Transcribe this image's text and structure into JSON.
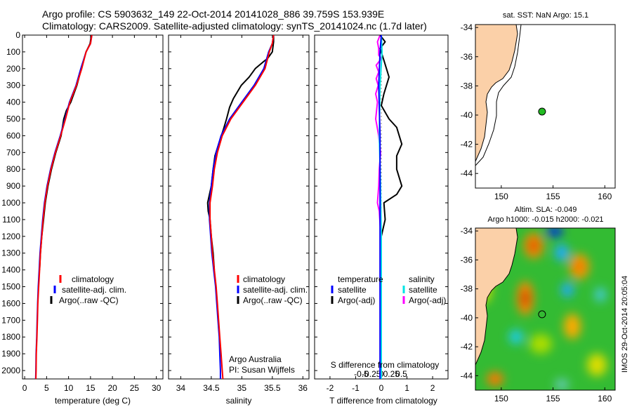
{
  "header": {
    "line1": "Argo profile: CS 5903632_149 22-Oct-2014 20141028_886 39.759S 153.939E",
    "line2": "Climatology: CARS2009. Satellite-adjusted climatology: synTS_20141024.nc (1.7d later)"
  },
  "colors": {
    "climatology": "#ff0000",
    "satellite": "#0000ff",
    "argo": "#000000",
    "sat_salinity": "#00e5e5",
    "argo_salinity": "#ff00ff",
    "land": "#fbd0a8",
    "float_marker": "#22bb22"
  },
  "chart_data": [
    {
      "id": "temperature",
      "type": "line",
      "xlabel": "temperature (deg C)",
      "ylabel": "",
      "xlim": [
        -0.5,
        31.5
      ],
      "ylim": [
        0,
        2050
      ],
      "xticks": [
        "0",
        "5",
        "10",
        "15",
        "20",
        "25",
        "30"
      ],
      "yticks": [
        "0",
        "100",
        "200",
        "300",
        "400",
        "500",
        "600",
        "700",
        "800",
        "900",
        "1000",
        "1100",
        "1200",
        "1300",
        "1400",
        "1500",
        "1600",
        "1700",
        "1800",
        "1900",
        "2000"
      ],
      "legend": [
        "climatology",
        "satellite-adj. clim.",
        "Argo(..raw -QC)"
      ],
      "series": [
        {
          "name": "climatology",
          "color": "#ff0000",
          "points": [
            [
              15.3,
              0
            ],
            [
              15.0,
              50
            ],
            [
              14.0,
              100
            ],
            [
              13.0,
              200
            ],
            [
              11.8,
              300
            ],
            [
              10.3,
              400
            ],
            [
              9.3,
              500
            ],
            [
              8.2,
              600
            ],
            [
              7.0,
              700
            ],
            [
              6.0,
              800
            ],
            [
              5.2,
              900
            ],
            [
              4.6,
              1000
            ],
            [
              4.2,
              1100
            ],
            [
              3.9,
              1200
            ],
            [
              3.6,
              1300
            ],
            [
              3.4,
              1400
            ],
            [
              3.2,
              1500
            ],
            [
              3.0,
              1600
            ],
            [
              2.9,
              1700
            ],
            [
              2.8,
              1800
            ],
            [
              2.65,
              1900
            ],
            [
              2.6,
              2000
            ],
            [
              2.55,
              2050
            ]
          ]
        },
        {
          "name": "satellite-adj. clim.",
          "color": "#0000ff",
          "points": [
            [
              15.3,
              0
            ],
            [
              15.0,
              50
            ],
            [
              14.0,
              100
            ],
            [
              12.8,
              200
            ],
            [
              11.7,
              300
            ],
            [
              10.2,
              400
            ],
            [
              9.2,
              500
            ],
            [
              8.1,
              600
            ],
            [
              6.9,
              700
            ],
            [
              5.9,
              800
            ],
            [
              5.1,
              900
            ],
            [
              4.5,
              1000
            ],
            [
              4.1,
              1100
            ],
            [
              3.8,
              1200
            ],
            [
              3.5,
              1300
            ],
            [
              3.3,
              1400
            ],
            [
              3.1,
              1500
            ],
            [
              2.95,
              1600
            ],
            [
              2.85,
              1700
            ],
            [
              2.75,
              1800
            ],
            [
              2.6,
              1900
            ],
            [
              2.55,
              2000
            ],
            [
              2.5,
              2050
            ]
          ]
        },
        {
          "name": "Argo(..raw -QC)",
          "color": "#000000",
          "points": [
            [
              15.2,
              0
            ],
            [
              14.9,
              50
            ],
            [
              14.0,
              100
            ],
            [
              12.9,
              200
            ],
            [
              11.9,
              300
            ],
            [
              10.5,
              400
            ],
            [
              9.5,
              450
            ],
            [
              8.9,
              500
            ],
            [
              8.3,
              600
            ],
            [
              7.1,
              700
            ],
            [
              6.1,
              800
            ],
            [
              5.3,
              900
            ],
            [
              4.7,
              1000
            ],
            [
              4.3,
              1100
            ],
            [
              3.9,
              1200
            ],
            [
              3.6,
              1300
            ],
            [
              3.4,
              1400
            ]
          ]
        }
      ]
    },
    {
      "id": "salinity",
      "type": "line",
      "xlabel": "salinity",
      "ylabel": "",
      "xlim": [
        33.8,
        36.1
      ],
      "ylim": [
        0,
        2050
      ],
      "xticks": [
        "34",
        "34.5",
        "35",
        "35.5",
        "36"
      ],
      "legend": [
        "climatology",
        "satellite-adj. clim.",
        "Argo(..raw -QC)"
      ],
      "annotations": [
        "Argo Australia",
        "PI: Susan Wijffels"
      ],
      "series": [
        {
          "name": "climatology",
          "color": "#ff0000",
          "points": [
            [
              35.52,
              0
            ],
            [
              35.5,
              50
            ],
            [
              35.45,
              100
            ],
            [
              35.38,
              200
            ],
            [
              35.22,
              300
            ],
            [
              35.02,
              400
            ],
            [
              34.82,
              500
            ],
            [
              34.68,
              600
            ],
            [
              34.6,
              700
            ],
            [
              34.55,
              800
            ],
            [
              34.52,
              900
            ],
            [
              34.48,
              1000
            ],
            [
              34.48,
              1100
            ],
            [
              34.5,
              1200
            ],
            [
              34.52,
              1300
            ],
            [
              34.55,
              1400
            ],
            [
              34.58,
              1500
            ],
            [
              34.6,
              1600
            ],
            [
              34.62,
              1700
            ],
            [
              34.64,
              1800
            ],
            [
              34.66,
              1900
            ],
            [
              34.68,
              2000
            ],
            [
              34.69,
              2050
            ]
          ]
        },
        {
          "name": "satellite-adj. clim.",
          "color": "#0000ff",
          "points": [
            [
              35.52,
              0
            ],
            [
              35.5,
              50
            ],
            [
              35.44,
              100
            ],
            [
              35.36,
              200
            ],
            [
              35.2,
              300
            ],
            [
              35.0,
              400
            ],
            [
              34.8,
              500
            ],
            [
              34.66,
              600
            ],
            [
              34.58,
              700
            ],
            [
              34.53,
              800
            ],
            [
              34.5,
              900
            ],
            [
              34.47,
              1000
            ],
            [
              34.47,
              1100
            ],
            [
              34.49,
              1200
            ],
            [
              34.51,
              1300
            ],
            [
              34.54,
              1400
            ],
            [
              34.57,
              1500
            ],
            [
              34.59,
              1600
            ],
            [
              34.61,
              1700
            ],
            [
              34.63,
              1800
            ],
            [
              34.64,
              1900
            ],
            [
              34.65,
              2000
            ],
            [
              34.65,
              2050
            ]
          ]
        },
        {
          "name": "Argo(..raw -QC)",
          "color": "#000000",
          "points": [
            [
              35.52,
              0
            ],
            [
              35.52,
              40
            ],
            [
              35.5,
              100
            ],
            [
              35.42,
              140
            ],
            [
              35.35,
              160
            ],
            [
              35.22,
              200
            ],
            [
              35.12,
              250
            ],
            [
              34.99,
              300
            ],
            [
              34.86,
              380
            ],
            [
              34.8,
              430
            ],
            [
              34.75,
              500
            ],
            [
              34.7,
              560
            ],
            [
              34.62,
              650
            ],
            [
              34.56,
              720
            ],
            [
              34.53,
              800
            ],
            [
              34.5,
              900
            ],
            [
              34.44,
              1000
            ],
            [
              34.45,
              1050
            ],
            [
              34.48,
              1100
            ],
            [
              34.5,
              1200
            ],
            [
              34.53,
              1300
            ],
            [
              34.55,
              1400
            ]
          ]
        }
      ]
    },
    {
      "id": "difference",
      "type": "line",
      "xlabel": "T difference from climatology",
      "xlabel_top": "S difference from climatology",
      "xlim": [
        -2.6,
        2.6
      ],
      "ylim": [
        0,
        2050
      ],
      "xticks_T": [
        "-2",
        "-1",
        "0",
        "1",
        "2"
      ],
      "xticks_S": [
        "-0.5",
        "-0.25",
        "0",
        "0.25",
        "0.5"
      ],
      "legend": {
        "temperature_heading": "temperature",
        "salinity_heading": "salinity",
        "temperature_items": [
          "satellite",
          "Argo(-adj)"
        ],
        "salinity_items": [
          "satellite",
          "Argo(-adj)"
        ]
      },
      "series": [
        {
          "name": "T satellite",
          "color": "#0000ff",
          "points": [
            [
              0.0,
              0
            ],
            [
              -0.05,
              100
            ],
            [
              -0.1,
              300
            ],
            [
              -0.05,
              600
            ],
            [
              -0.05,
              900
            ],
            [
              -0.05,
              1000
            ],
            [
              -0.05,
              1200
            ],
            [
              -0.05,
              1400
            ],
            [
              -0.05,
              2050
            ]
          ]
        },
        {
          "name": "T Argo(-adj)",
          "color": "#000000",
          "points": [
            [
              -0.05,
              0
            ],
            [
              0.15,
              40
            ],
            [
              -0.05,
              80
            ],
            [
              0.1,
              150
            ],
            [
              0.3,
              250
            ],
            [
              0.1,
              350
            ],
            [
              0.0,
              420
            ],
            [
              0.3,
              500
            ],
            [
              0.6,
              550
            ],
            [
              0.8,
              650
            ],
            [
              0.6,
              720
            ],
            [
              0.6,
              800
            ],
            [
              0.8,
              900
            ],
            [
              0.6,
              950
            ],
            [
              0.1,
              1000
            ],
            [
              0.15,
              1100
            ],
            [
              0.0,
              1200
            ],
            [
              0.0,
              1400
            ]
          ]
        },
        {
          "name": "S satellite",
          "color": "#00e5e5",
          "points": [
            [
              0.0,
              0
            ],
            [
              0.03,
              100
            ],
            [
              -0.05,
              300
            ],
            [
              -0.08,
              600
            ],
            [
              -0.03,
              900
            ],
            [
              0.0,
              1200
            ],
            [
              0.0,
              1400
            ],
            [
              0.0,
              2050
            ]
          ]
        },
        {
          "name": "S Argo(-adj)",
          "color": "#ff00ff",
          "points": [
            [
              -0.05,
              0
            ],
            [
              -0.15,
              40
            ],
            [
              -0.1,
              80
            ],
            [
              -0.1,
              120
            ],
            [
              0.0,
              140
            ],
            [
              -0.2,
              180
            ],
            [
              -0.1,
              220
            ],
            [
              -0.2,
              260
            ],
            [
              -0.12,
              300
            ],
            [
              -0.22,
              350
            ],
            [
              -0.15,
              400
            ],
            [
              -0.22,
              500
            ],
            [
              -0.1,
              600
            ],
            [
              -0.03,
              700
            ],
            [
              -0.08,
              800
            ],
            [
              -0.1,
              900
            ],
            [
              -0.15,
              1000
            ],
            [
              -0.08,
              1050
            ],
            [
              -0.02,
              1200
            ],
            [
              0.0,
              1400
            ]
          ]
        }
      ]
    },
    {
      "id": "sst-map",
      "type": "scatter",
      "title": "sat. SST: NaN  Argo: 15.1",
      "xlim": [
        147.5,
        161
      ],
      "ylim": [
        -45,
        -33.8
      ],
      "xticks": [
        "150",
        "155",
        "160"
      ],
      "yticks": [
        "-34",
        "-36",
        "-38",
        "-40",
        "-42",
        "-44"
      ],
      "points": [
        [
          153.939,
          -39.759
        ]
      ]
    },
    {
      "id": "sla-map",
      "type": "heatmap",
      "title": "Altim. SLA: -0.049",
      "subtitle": "Argo h1000: -0.015  h2000: -0.021",
      "xlim": [
        147.5,
        161
      ],
      "ylim": [
        -45,
        -33.8
      ],
      "xticks": [
        "150",
        "155",
        "160"
      ],
      "yticks": [
        "-34",
        "-36",
        "-38",
        "-40",
        "-42",
        "-44"
      ],
      "points": [
        [
          153.939,
          -39.759
        ]
      ],
      "side_label": "IMOS 29-Oct-2014 20:05:04"
    }
  ]
}
